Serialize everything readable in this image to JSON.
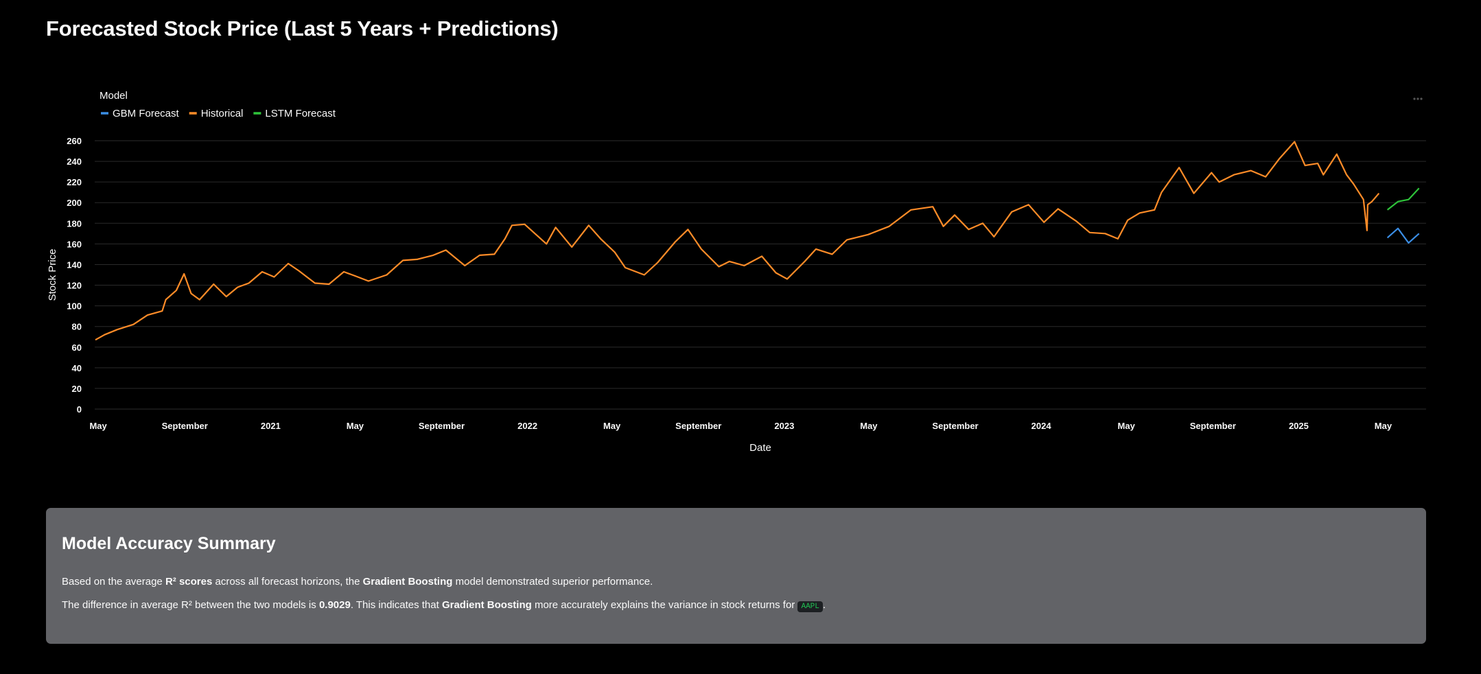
{
  "page": {
    "title": "Forecasted Stock Price (Last 5 Years + Predictions)"
  },
  "chart_data": {
    "type": "line",
    "xlabel": "Date",
    "ylabel": "Stock Price",
    "ylim": [
      0,
      260
    ],
    "yticks": [
      0,
      20,
      40,
      60,
      80,
      100,
      120,
      140,
      160,
      180,
      200,
      220,
      240,
      260
    ],
    "xlim": [
      "2020-04-26",
      "2025-07-01"
    ],
    "xticks": [
      {
        "date": "2020-05-01",
        "label": "May"
      },
      {
        "date": "2020-09-01",
        "label": "September"
      },
      {
        "date": "2021-01-01",
        "label": "2021"
      },
      {
        "date": "2021-05-01",
        "label": "May"
      },
      {
        "date": "2021-09-01",
        "label": "September"
      },
      {
        "date": "2022-01-01",
        "label": "2022"
      },
      {
        "date": "2022-05-01",
        "label": "May"
      },
      {
        "date": "2022-09-01",
        "label": "September"
      },
      {
        "date": "2023-01-01",
        "label": "2023"
      },
      {
        "date": "2023-05-01",
        "label": "May"
      },
      {
        "date": "2023-09-01",
        "label": "September"
      },
      {
        "date": "2024-01-01",
        "label": "2024"
      },
      {
        "date": "2024-05-01",
        "label": "May"
      },
      {
        "date": "2024-09-01",
        "label": "September"
      },
      {
        "date": "2025-01-01",
        "label": "2025"
      },
      {
        "date": "2025-05-01",
        "label": "May"
      }
    ],
    "grid": true,
    "legend": {
      "title": "Model",
      "position": "top-left"
    },
    "series": [
      {
        "name": "GBM Forecast",
        "color": "#3b8ee5",
        "points": [
          [
            "2025-05-07",
            166
          ],
          [
            "2025-05-22",
            175
          ],
          [
            "2025-06-06",
            161
          ],
          [
            "2025-06-21",
            170
          ]
        ]
      },
      {
        "name": "Historical",
        "color": "#ff8c28",
        "points": [
          [
            "2020-04-27",
            67
          ],
          [
            "2020-05-10",
            72
          ],
          [
            "2020-05-28",
            77
          ],
          [
            "2020-06-20",
            82
          ],
          [
            "2020-07-10",
            91
          ],
          [
            "2020-07-31",
            95
          ],
          [
            "2020-08-05",
            106
          ],
          [
            "2020-08-20",
            115
          ],
          [
            "2020-08-31",
            131
          ],
          [
            "2020-09-10",
            112
          ],
          [
            "2020-09-22",
            106
          ],
          [
            "2020-10-12",
            121
          ],
          [
            "2020-10-30",
            109
          ],
          [
            "2020-11-15",
            118
          ],
          [
            "2020-12-01",
            122
          ],
          [
            "2020-12-20",
            133
          ],
          [
            "2021-01-06",
            128
          ],
          [
            "2021-01-26",
            141
          ],
          [
            "2021-02-10",
            134
          ],
          [
            "2021-03-05",
            122
          ],
          [
            "2021-03-25",
            121
          ],
          [
            "2021-04-15",
            133
          ],
          [
            "2021-05-01",
            129
          ],
          [
            "2021-05-20",
            124
          ],
          [
            "2021-06-15",
            130
          ],
          [
            "2021-07-08",
            144
          ],
          [
            "2021-07-28",
            145
          ],
          [
            "2021-08-20",
            149
          ],
          [
            "2021-09-07",
            154
          ],
          [
            "2021-10-04",
            139
          ],
          [
            "2021-10-25",
            149
          ],
          [
            "2021-11-15",
            150
          ],
          [
            "2021-11-30",
            165
          ],
          [
            "2021-12-10",
            178
          ],
          [
            "2021-12-28",
            179
          ],
          [
            "2022-01-10",
            171
          ],
          [
            "2022-01-28",
            160
          ],
          [
            "2022-02-10",
            176
          ],
          [
            "2022-03-05",
            157
          ],
          [
            "2022-03-29",
            178
          ],
          [
            "2022-04-15",
            165
          ],
          [
            "2022-05-05",
            152
          ],
          [
            "2022-05-20",
            137
          ],
          [
            "2022-06-16",
            130
          ],
          [
            "2022-07-05",
            142
          ],
          [
            "2022-07-30",
            162
          ],
          [
            "2022-08-17",
            174
          ],
          [
            "2022-09-05",
            155
          ],
          [
            "2022-09-30",
            138
          ],
          [
            "2022-10-15",
            143
          ],
          [
            "2022-11-05",
            139
          ],
          [
            "2022-11-30",
            148
          ],
          [
            "2022-12-20",
            132
          ],
          [
            "2023-01-05",
            126
          ],
          [
            "2023-01-30",
            143
          ],
          [
            "2023-02-15",
            155
          ],
          [
            "2023-03-10",
            150
          ],
          [
            "2023-03-31",
            164
          ],
          [
            "2023-04-30",
            169
          ],
          [
            "2023-05-30",
            177
          ],
          [
            "2023-06-30",
            193
          ],
          [
            "2023-07-31",
            196
          ],
          [
            "2023-08-15",
            177
          ],
          [
            "2023-08-31",
            188
          ],
          [
            "2023-09-20",
            174
          ],
          [
            "2023-10-10",
            180
          ],
          [
            "2023-10-26",
            167
          ],
          [
            "2023-11-20",
            191
          ],
          [
            "2023-12-14",
            198
          ],
          [
            "2024-01-05",
            181
          ],
          [
            "2024-01-25",
            194
          ],
          [
            "2024-02-20",
            182
          ],
          [
            "2024-03-10",
            171
          ],
          [
            "2024-04-01",
            170
          ],
          [
            "2024-04-19",
            165
          ],
          [
            "2024-05-03",
            183
          ],
          [
            "2024-05-20",
            190
          ],
          [
            "2024-06-10",
            193
          ],
          [
            "2024-06-20",
            210
          ],
          [
            "2024-07-15",
            234
          ],
          [
            "2024-08-05",
            209
          ],
          [
            "2024-08-30",
            229
          ],
          [
            "2024-09-10",
            220
          ],
          [
            "2024-10-01",
            227
          ],
          [
            "2024-10-25",
            231
          ],
          [
            "2024-11-15",
            225
          ],
          [
            "2024-12-05",
            243
          ],
          [
            "2024-12-26",
            259
          ],
          [
            "2025-01-10",
            236
          ],
          [
            "2025-01-28",
            238
          ],
          [
            "2025-02-05",
            227
          ],
          [
            "2025-02-24",
            247
          ],
          [
            "2025-03-10",
            227
          ],
          [
            "2025-03-20",
            218
          ],
          [
            "2025-04-03",
            203
          ],
          [
            "2025-04-08",
            173
          ],
          [
            "2025-04-09",
            198
          ],
          [
            "2025-04-15",
            201
          ],
          [
            "2025-04-25",
            209
          ]
        ]
      },
      {
        "name": "LSTM Forecast",
        "color": "#2ec43a",
        "points": [
          [
            "2025-05-07",
            193
          ],
          [
            "2025-05-22",
            201
          ],
          [
            "2025-06-06",
            203
          ],
          [
            "2025-06-21",
            214
          ]
        ]
      }
    ]
  },
  "summary": {
    "title": "Model Accuracy Summary",
    "p1_a": "Based on the average ",
    "p1_b": "R² scores",
    "p1_c": " across all forecast horizons, the ",
    "p1_d": "Gradient Boosting",
    "p1_e": " model demonstrated superior performance.",
    "p2_a": "The difference in average R² between the two models is ",
    "p2_b": "0.9029",
    "p2_c": ". This indicates that ",
    "p2_d": "Gradient Boosting",
    "p2_e": " more accurately explains the variance in stock returns for ",
    "p2_code": "AAPL",
    "p2_f": "."
  }
}
